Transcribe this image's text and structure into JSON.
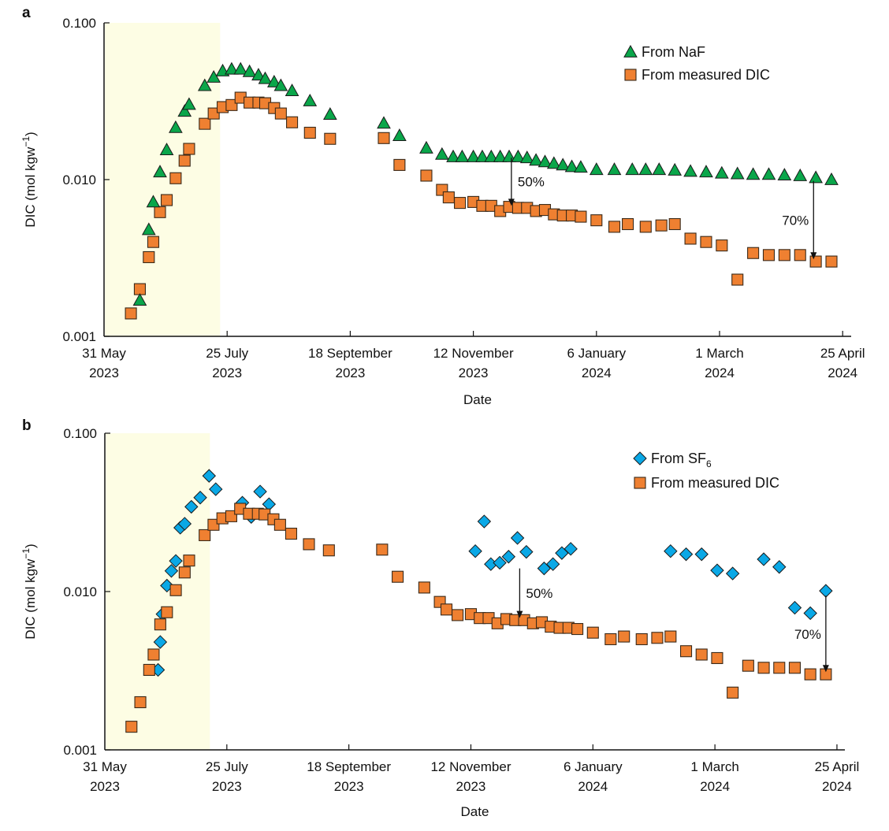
{
  "chart_data": [
    {
      "panel": "a",
      "type": "scatter",
      "title": "",
      "xlabel": "Date",
      "ylabel": "DIC (mol kgw",
      "ylabel_sup": "−1",
      "ylabel_close": ")",
      "yscale": "log",
      "ylim": [
        0.001,
        0.1
      ],
      "yticks": [
        "0.001",
        "0.010",
        "0.100"
      ],
      "xlim_days": [
        0,
        336
      ],
      "x_origin_date": "31 May 2023",
      "xticks": [
        {
          "day": 0,
          "line1": "31 May",
          "line2": "2023"
        },
        {
          "day": 55,
          "line1": "25 July",
          "line2": "2023"
        },
        {
          "day": 110,
          "line1": "18 September",
          "line2": "2023"
        },
        {
          "day": 165,
          "line1": "12 November",
          "line2": "2023"
        },
        {
          "day": 220,
          "line1": "6 January",
          "line2": "2024"
        },
        {
          "day": 275,
          "line1": "1 March",
          "line2": "2024"
        },
        {
          "day": 330,
          "line1": "25 April",
          "line2": "2024"
        }
      ],
      "shaded_region_days": [
        0,
        51.5
      ],
      "shade_color": "#fdfde4",
      "legend_position": "top-right",
      "series": [
        {
          "name": "From NaF",
          "marker": "triangle",
          "color": "#0aa64a",
          "x_days": [
            16,
            20,
            22,
            25,
            28,
            32,
            36,
            38,
            45,
            49,
            53,
            57,
            61,
            65,
            69,
            72,
            76,
            79,
            84,
            92,
            101,
            125,
            132,
            144,
            151,
            156,
            160,
            165,
            169,
            173,
            177,
            181,
            185,
            189,
            193,
            197,
            201,
            205,
            209,
            213,
            220,
            228,
            236,
            242,
            248,
            255,
            262,
            269,
            276,
            283,
            290,
            297,
            304,
            311,
            318,
            325
          ],
          "y": [
            0.0017,
            0.0048,
            0.0072,
            0.0112,
            0.0155,
            0.0215,
            0.0273,
            0.0302,
            0.0398,
            0.045,
            0.0494,
            0.0507,
            0.0507,
            0.0489,
            0.0465,
            0.0441,
            0.042,
            0.0398,
            0.0369,
            0.0318,
            0.0261,
            0.0229,
            0.0191,
            0.0159,
            0.0145,
            0.014,
            0.014,
            0.014,
            0.014,
            0.014,
            0.014,
            0.014,
            0.014,
            0.0138,
            0.0133,
            0.013,
            0.0127,
            0.0124,
            0.0121,
            0.012,
            0.0116,
            0.0116,
            0.0116,
            0.0116,
            0.0116,
            0.0115,
            0.0113,
            0.0112,
            0.011,
            0.0109,
            0.0108,
            0.0108,
            0.0107,
            0.0106,
            0.0103,
            0.01
          ]
        },
        {
          "name": "From measured DIC",
          "marker": "square",
          "color": "#ef8031",
          "x_days": [
            12,
            16,
            20,
            22,
            25,
            28,
            32,
            36,
            38,
            45,
            49,
            53,
            57,
            61,
            65,
            69,
            72,
            76,
            79,
            84,
            92,
            101,
            125,
            132,
            144,
            151,
            154,
            159,
            165,
            169,
            173,
            177,
            181,
            185,
            189,
            193,
            197,
            201,
            205,
            209,
            213,
            220,
            228,
            234,
            242,
            249,
            255,
            262,
            269,
            276,
            283,
            290,
            297,
            304,
            311,
            318,
            325
          ],
          "y": [
            0.0014,
            0.002,
            0.0032,
            0.004,
            0.0062,
            0.0074,
            0.0102,
            0.0132,
            0.0157,
            0.0227,
            0.0264,
            0.029,
            0.0299,
            0.0333,
            0.031,
            0.031,
            0.0307,
            0.0286,
            0.0264,
            0.0232,
            0.0199,
            0.0182,
            0.0184,
            0.0124,
            0.0106,
            0.0086,
            0.0077,
            0.0071,
            0.0072,
            0.0068,
            0.0068,
            0.0063,
            0.0067,
            0.0066,
            0.0066,
            0.0063,
            0.0064,
            0.006,
            0.0059,
            0.0059,
            0.0058,
            0.0055,
            0.005,
            0.0052,
            0.005,
            0.0051,
            0.0052,
            0.0042,
            0.004,
            0.0038,
            0.0023,
            0.0034,
            0.0033,
            0.0033,
            0.0033,
            0.003,
            0.003
          ]
        }
      ],
      "annotations": [
        {
          "text": "50%",
          "arrow_day": 182,
          "from": 0.0138,
          "to": 0.0068
        },
        {
          "text": "70%",
          "arrow_day": 317,
          "from": 0.0098,
          "to": 0.0031
        }
      ]
    },
    {
      "panel": "b",
      "type": "scatter",
      "title": "",
      "xlabel": "Date",
      "ylabel": "DIC (mol kgw",
      "ylabel_sup": "−1",
      "ylabel_close": ")",
      "yscale": "log",
      "ylim": [
        0.001,
        0.1
      ],
      "yticks": [
        "0.001",
        "0.010",
        "0.100"
      ],
      "xlim_days": [
        0,
        336
      ],
      "x_origin_date": "31 May 2023",
      "xticks": [
        {
          "day": 0,
          "line1": "31 May",
          "line2": "2023"
        },
        {
          "day": 55,
          "line1": "25 July",
          "line2": "2023"
        },
        {
          "day": 110,
          "line1": "18 September",
          "line2": "2023"
        },
        {
          "day": 165,
          "line1": "12 November",
          "line2": "2023"
        },
        {
          "day": 220,
          "line1": "6 January",
          "line2": "2024"
        },
        {
          "day": 275,
          "line1": "1 March",
          "line2": "2024"
        },
        {
          "day": 330,
          "line1": "25 April",
          "line2": "2024"
        }
      ],
      "shaded_region_days": [
        0,
        47
      ],
      "shade_color": "#fdfde4",
      "legend_position": "top-right",
      "series": [
        {
          "name": "From SF",
          "name_sub": "6",
          "marker": "diamond",
          "color": "#0aa8e6",
          "x_days": [
            24,
            25,
            26,
            28,
            30,
            32,
            34,
            36,
            39,
            43,
            47,
            50,
            62,
            66,
            70,
            74,
            167,
            171,
            174,
            178,
            182,
            186,
            190,
            198,
            202,
            206,
            210,
            255,
            262,
            269,
            276,
            283,
            297,
            304,
            311,
            318,
            325
          ],
          "y": [
            0.0032,
            0.0048,
            0.0072,
            0.0109,
            0.0135,
            0.0156,
            0.0253,
            0.0268,
            0.0343,
            0.0392,
            0.0538,
            0.0443,
            0.0364,
            0.0296,
            0.0428,
            0.0356,
            0.018,
            0.0277,
            0.0149,
            0.0152,
            0.0166,
            0.0218,
            0.0178,
            0.014,
            0.0149,
            0.0175,
            0.0186,
            0.018,
            0.0172,
            0.0172,
            0.0136,
            0.013,
            0.016,
            0.0143,
            0.0079,
            0.0073,
            0.0101
          ]
        },
        {
          "name": "From measured DIC",
          "marker": "square",
          "color": "#ef8031",
          "x_days": [
            12,
            16,
            20,
            22,
            25,
            28,
            32,
            36,
            38,
            45,
            49,
            53,
            57,
            61,
            65,
            69,
            72,
            76,
            79,
            84,
            92,
            101,
            125,
            132,
            144,
            151,
            154,
            159,
            165,
            169,
            173,
            177,
            181,
            185,
            189,
            193,
            197,
            201,
            205,
            209,
            213,
            220,
            228,
            234,
            242,
            249,
            255,
            262,
            269,
            276,
            283,
            290,
            297,
            304,
            311,
            318,
            325
          ],
          "y": [
            0.0014,
            0.002,
            0.0032,
            0.004,
            0.0062,
            0.0074,
            0.0102,
            0.0132,
            0.0157,
            0.0227,
            0.0264,
            0.029,
            0.0299,
            0.0333,
            0.031,
            0.031,
            0.0307,
            0.0286,
            0.0264,
            0.0232,
            0.0199,
            0.0182,
            0.0184,
            0.0124,
            0.0106,
            0.0086,
            0.0077,
            0.0071,
            0.0072,
            0.0068,
            0.0068,
            0.0063,
            0.0067,
            0.0066,
            0.0066,
            0.0063,
            0.0064,
            0.006,
            0.0059,
            0.0059,
            0.0058,
            0.0055,
            0.005,
            0.0052,
            0.005,
            0.0051,
            0.0052,
            0.0042,
            0.004,
            0.0038,
            0.0023,
            0.0034,
            0.0033,
            0.0033,
            0.0033,
            0.003,
            0.003
          ]
        }
      ],
      "annotations": [
        {
          "text": "50%",
          "arrow_day": 187,
          "from": 0.014,
          "to": 0.0068
        },
        {
          "text": "70%",
          "arrow_day": 325,
          "from": 0.0094,
          "to": 0.0031
        }
      ]
    }
  ]
}
